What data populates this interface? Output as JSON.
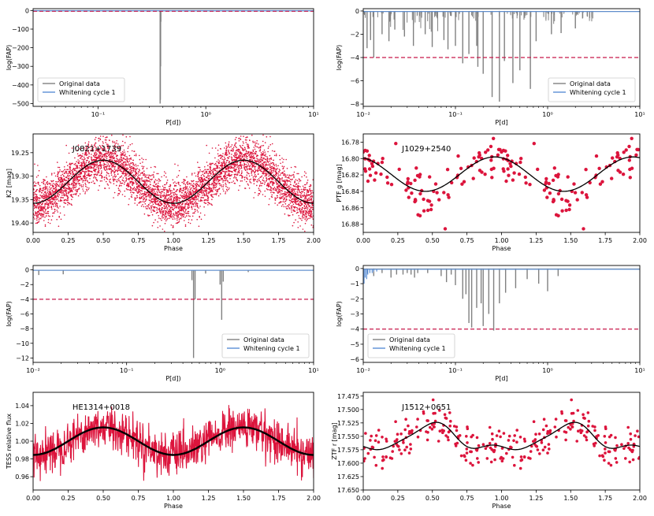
{
  "chart_data": [
    {
      "id": "p1",
      "type": "line",
      "xscale": "log",
      "xlim": [
        0.025,
        10
      ],
      "ylim": [
        -515,
        10
      ],
      "yticks": [
        0,
        -100,
        -200,
        -300,
        -400,
        -500
      ],
      "yticklabels": [
        "0",
        "−100",
        "−200",
        "−300",
        "−400",
        "−500"
      ],
      "xticks": [
        0.1,
        1,
        10
      ],
      "xticklabels": [
        "10⁻¹",
        "10⁰",
        "10¹"
      ],
      "xlabel": "P[d])",
      "ylabel": "log(FAP)",
      "threshold": -4,
      "legend": {
        "placement": "lower-left",
        "entries": [
          "Original data",
          "Whitening cycle 1"
        ]
      },
      "series": [
        {
          "name": "Original data",
          "color": "#808080",
          "spikes": [
            [
              0.377,
              -500
            ],
            [
              0.379,
              -480
            ],
            [
              0.381,
              -300
            ],
            [
              0.383,
              -60
            ]
          ]
        },
        {
          "name": "Whitening cycle 1",
          "color": "#5b8fd6",
          "baseline": -0.5
        }
      ]
    },
    {
      "id": "p2",
      "type": "line",
      "xscale": "log",
      "xlim": [
        0.01,
        10
      ],
      "ylim": [
        -8.2,
        0.2
      ],
      "yticks": [
        0,
        -2,
        -4,
        -6,
        -8
      ],
      "yticklabels": [
        "0",
        "−2",
        "−4",
        "−6",
        "−8"
      ],
      "xticks": [
        0.01,
        0.1,
        1,
        10
      ],
      "xticklabels": [
        "10⁻²",
        "10⁻¹",
        "10⁰",
        "10¹"
      ],
      "xlabel": "P[d]",
      "ylabel": "log(FAP)",
      "threshold": -4,
      "legend": {
        "placement": "lower-right",
        "entries": [
          "Original data",
          "Whitening cycle 1"
        ]
      },
      "series": [
        {
          "name": "Original data",
          "color": "#808080",
          "spikes": [
            [
              0.011,
              -3.2
            ],
            [
              0.012,
              -2.5
            ],
            [
              0.013,
              -4.0
            ],
            [
              0.016,
              -2.0
            ],
            [
              0.019,
              -2.6
            ],
            [
              0.022,
              -1.6
            ],
            [
              0.028,
              -2.2
            ],
            [
              0.035,
              -3.0
            ],
            [
              0.047,
              -2.0
            ],
            [
              0.056,
              -3.1
            ],
            [
              0.075,
              -2.5
            ],
            [
              0.083,
              -3.3
            ],
            [
              0.1,
              -3.0
            ],
            [
              0.12,
              -4.5
            ],
            [
              0.14,
              -3.7
            ],
            [
              0.17,
              -3.0
            ],
            [
              0.175,
              -4.8
            ],
            [
              0.2,
              -5.4
            ],
            [
              0.25,
              -7.4
            ],
            [
              0.3,
              -7.8
            ],
            [
              0.34,
              -4.3
            ],
            [
              0.42,
              -6.2
            ],
            [
              0.5,
              -5.1
            ],
            [
              0.65,
              -6.7
            ],
            [
              0.75,
              -2.6
            ],
            [
              1.1,
              -2.0
            ],
            [
              1.4,
              -1.9
            ],
            [
              2.0,
              -1.5
            ],
            [
              2.4,
              -0.6
            ]
          ]
        },
        {
          "name": "Whitening cycle 1",
          "color": "#5b8fd6",
          "baseline": -0.05
        }
      ]
    },
    {
      "id": "p3",
      "type": "scatter",
      "xlim": [
        0,
        2
      ],
      "ylim": [
        19.42,
        19.21
      ],
      "inverted": true,
      "xticks": [
        0,
        0.25,
        0.5,
        0.75,
        1.0,
        1.25,
        1.5,
        1.75,
        2.0
      ],
      "xticklabels": [
        "0.00",
        "0.25",
        "0.50",
        "0.75",
        "1.00",
        "1.25",
        "1.50",
        "1.75",
        "2.00"
      ],
      "yticks": [
        19.25,
        19.3,
        19.35,
        19.4
      ],
      "yticklabels": [
        "19.25",
        "19.30",
        "19.35",
        "19.40"
      ],
      "xlabel": "Phase",
      "ylabel": "K2 [mag]",
      "annotation": "J0821+1739",
      "model": {
        "mean": 19.312,
        "amp": 0.046,
        "phase0": 0.0,
        "color": "#000000"
      },
      "points": {
        "color": "#dc143c",
        "n": 2600,
        "scatter": 0.024,
        "size": 0.8
      }
    },
    {
      "id": "p4",
      "type": "scatter",
      "xlim": [
        0,
        2
      ],
      "ylim": [
        16.89,
        16.77
      ],
      "inverted": true,
      "xticks": [
        0,
        0.25,
        0.5,
        0.75,
        1.0,
        1.25,
        1.5,
        1.75,
        2.0
      ],
      "xticklabels": [
        "0.00",
        "0.25",
        "0.50",
        "0.75",
        "1.00",
        "1.25",
        "1.50",
        "1.75",
        "2.00"
      ],
      "yticks": [
        16.78,
        16.8,
        16.82,
        16.84,
        16.86,
        16.88
      ],
      "yticklabels": [
        "16.78",
        "16.80",
        "16.82",
        "16.84",
        "16.86",
        "16.88"
      ],
      "xlabel": "Phase",
      "ylabel": "PTF g [mag]",
      "annotation": "J1029+2540",
      "model": {
        "mean": 16.819,
        "amp": 0.021,
        "phase0": 0.45,
        "color": "#000000"
      },
      "points": {
        "color": "#dc143c",
        "n": 95,
        "scatter": 0.015,
        "size": 2.2
      }
    },
    {
      "id": "p5",
      "type": "line",
      "xscale": "log",
      "xlim": [
        0.01,
        10
      ],
      "ylim": [
        -12.6,
        0.6
      ],
      "yticks": [
        0,
        -2,
        -4,
        -6,
        -8,
        -10,
        -12
      ],
      "yticklabels": [
        "0",
        "−2",
        "−4",
        "−6",
        "−8",
        "−10",
        "−12"
      ],
      "xticks": [
        0.01,
        0.1,
        1,
        10
      ],
      "xticklabels": [
        "10⁻²",
        "10⁻¹",
        "10⁰",
        "10¹"
      ],
      "xlabel": "P[d])",
      "ylabel": "log(FAP)",
      "threshold": -4,
      "legend": {
        "placement": "lower-right",
        "entries": [
          "Original data",
          "Whitening cycle 1"
        ]
      },
      "series": [
        {
          "name": "Original data",
          "color": "#808080",
          "spikes": [
            [
              0.0115,
              -0.7
            ],
            [
              0.021,
              -0.6
            ],
            [
              0.5,
              -1.4
            ],
            [
              0.52,
              -12.0
            ],
            [
              0.54,
              -4.0
            ],
            [
              0.7,
              -0.5
            ],
            [
              1.0,
              -2.0
            ],
            [
              1.04,
              -6.8
            ],
            [
              1.08,
              -1.6
            ],
            [
              2.0,
              -0.3
            ]
          ]
        },
        {
          "name": "Whitening cycle 1",
          "color": "#5b8fd6",
          "baseline": -0.05
        }
      ]
    },
    {
      "id": "p6",
      "type": "line",
      "xscale": "log",
      "xlim": [
        0.01,
        10
      ],
      "ylim": [
        -6.2,
        0.2
      ],
      "yticks": [
        0,
        -1,
        -2,
        -3,
        -4,
        -5,
        -6
      ],
      "yticklabels": [
        "0",
        "−1",
        "−2",
        "−3",
        "−4",
        "−5",
        "−6"
      ],
      "xticks": [
        0.01,
        0.1,
        1,
        10
      ],
      "xticklabels": [
        "10⁻²",
        "10⁻¹",
        "10⁰",
        "10¹"
      ],
      "xlabel": "P[d]",
      "ylabel": "log(FAP)",
      "threshold": -4,
      "legend": {
        "placement": "lower-left",
        "entries": [
          "Original data",
          "Whitening cycle 1"
        ]
      },
      "series": [
        {
          "name": "Original data",
          "color": "#808080",
          "spikes": [
            [
              0.011,
              -0.3
            ],
            [
              0.013,
              -0.5
            ],
            [
              0.016,
              -0.3
            ],
            [
              0.02,
              -0.6
            ],
            [
              0.023,
              -0.4
            ],
            [
              0.027,
              -0.4
            ],
            [
              0.03,
              -0.3
            ],
            [
              0.033,
              -0.4
            ],
            [
              0.036,
              -0.6
            ],
            [
              0.039,
              -0.3
            ],
            [
              0.05,
              -0.3
            ],
            [
              0.07,
              -0.5
            ],
            [
              0.08,
              -0.9
            ],
            [
              0.09,
              -0.4
            ],
            [
              0.1,
              -1.1
            ],
            [
              0.12,
              -2.0
            ],
            [
              0.13,
              -1.7
            ],
            [
              0.14,
              -3.6
            ],
            [
              0.15,
              -3.9
            ],
            [
              0.17,
              -2.6
            ],
            [
              0.19,
              -2.3
            ],
            [
              0.2,
              -3.8
            ],
            [
              0.23,
              -3.0
            ],
            [
              0.26,
              -4.1
            ],
            [
              0.3,
              -2.3
            ],
            [
              0.35,
              -1.6
            ],
            [
              0.45,
              -1.3
            ],
            [
              0.6,
              -0.7
            ],
            [
              0.8,
              -1.0
            ],
            [
              1.0,
              -1.5
            ],
            [
              1.3,
              -0.5
            ]
          ]
        },
        {
          "name": "Whitening cycle 1",
          "color": "#5b8fd6",
          "baseline": -0.05,
          "spikes": [
            [
              0.0102,
              -1.0
            ],
            [
              0.0105,
              -0.6
            ],
            [
              0.0109,
              -0.7
            ],
            [
              0.0112,
              -0.4
            ],
            [
              0.0118,
              -0.3
            ],
            [
              0.0125,
              -0.3
            ],
            [
              0.013,
              -0.2
            ],
            [
              0.014,
              -0.2
            ]
          ]
        }
      ]
    },
    {
      "id": "p7",
      "type": "line",
      "xlim": [
        0,
        2
      ],
      "ylim": [
        0.945,
        1.055
      ],
      "xticks": [
        0,
        0.25,
        0.5,
        0.75,
        1.0,
        1.25,
        1.5,
        1.75,
        2.0
      ],
      "xticklabels": [
        "0.00",
        "0.25",
        "0.50",
        "0.75",
        "1.00",
        "1.25",
        "1.50",
        "1.75",
        "2.00"
      ],
      "yticks": [
        0.96,
        0.98,
        1.0,
        1.02,
        1.04
      ],
      "yticklabels": [
        "0.96",
        "0.98",
        "1.00",
        "1.02",
        "1.04"
      ],
      "xlabel": "Phase",
      "ylabel": "TESS relative flux",
      "annotation": "HE1314+0018",
      "model": {
        "mean": 1.0,
        "amp": -0.0155,
        "phase0": 0.0,
        "color": "#000000"
      },
      "points": {
        "color": "#dc143c",
        "n": 900,
        "scatter": 0.012
      }
    },
    {
      "id": "p8",
      "type": "scatter",
      "xlim": [
        0,
        2
      ],
      "ylim": [
        17.65,
        17.468
      ],
      "inverted": true,
      "xticks": [
        0,
        0.25,
        0.5,
        0.75,
        1.0,
        1.25,
        1.5,
        1.75,
        2.0
      ],
      "xticklabels": [
        "0.00",
        "0.25",
        "0.50",
        "0.75",
        "1.00",
        "1.25",
        "1.50",
        "1.75",
        "2.00"
      ],
      "yticks": [
        17.475,
        17.5,
        17.525,
        17.55,
        17.575,
        17.6,
        17.625,
        17.65
      ],
      "yticklabels": [
        "17.475",
        "17.500",
        "17.525",
        "17.550",
        "17.575",
        "17.600",
        "17.625",
        "17.650"
      ],
      "xlabel": "Phase",
      "ylabel": "ZTF r [mag]",
      "annotation": "J1512+0651",
      "model": {
        "mean": 17.556,
        "amp": 0.022,
        "phase0": 0.0,
        "harm": true,
        "color": "#000000"
      },
      "points": {
        "color": "#dc143c",
        "n": 150,
        "scatter": 0.018,
        "size": 1.8
      }
    }
  ]
}
